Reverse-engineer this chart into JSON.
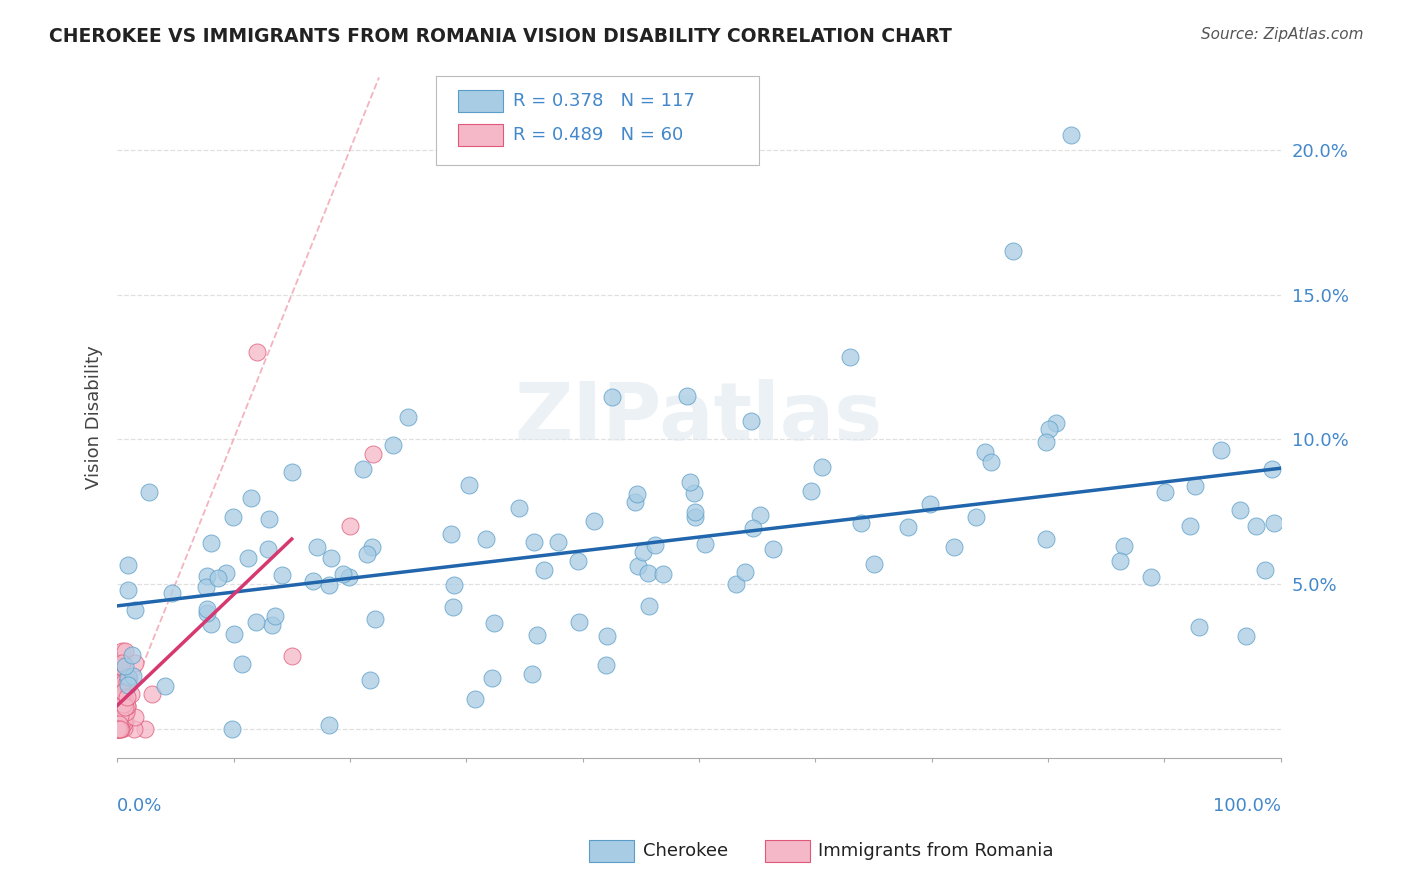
{
  "title": "CHEROKEE VS IMMIGRANTS FROM ROMANIA VISION DISABILITY CORRELATION CHART",
  "source": "Source: ZipAtlas.com",
  "ylabel": "Vision Disability",
  "y_ticks": [
    0.0,
    0.05,
    0.1,
    0.15,
    0.2
  ],
  "y_tick_labels": [
    "",
    "5.0%",
    "10.0%",
    "15.0%",
    "20.0%"
  ],
  "xlim": [
    0.0,
    1.0
  ],
  "ylim": [
    -0.01,
    0.225
  ],
  "cherokee_color": "#a8cce4",
  "cherokee_edge": "#5a9dc8",
  "romania_color": "#f5b8c8",
  "romania_edge": "#e05878",
  "cherokee_R": 0.378,
  "cherokee_N": 117,
  "romania_R": 0.489,
  "romania_N": 60,
  "watermark": "ZIPatlas",
  "background_color": "#ffffff",
  "grid_color": "#cccccc",
  "legend_label_cherokee": "Cherokee",
  "legend_label_romania": "Immigrants from Romania",
  "blue_line_color": "#2166ac",
  "pink_line_color": "#d63870",
  "diag_line_color": "#f0a0b0",
  "tick_label_color": "#4488cc",
  "title_color": "#222222",
  "source_color": "#555555",
  "ylabel_color": "#444444"
}
